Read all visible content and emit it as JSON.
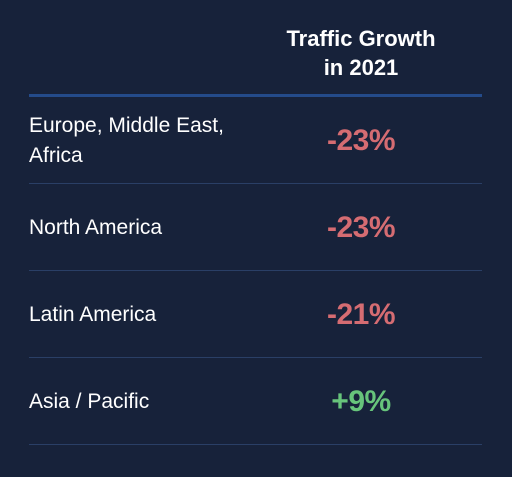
{
  "header": {
    "title": "Traffic Growth\nin 2021"
  },
  "colors": {
    "background": "#17223a",
    "negative": "#d56c72",
    "positive": "#67c47b",
    "header_divider": "#244b8a",
    "row_divider": "#2a3f66"
  },
  "chart_data": {
    "type": "table",
    "title": "",
    "columns": [
      "",
      "Traffic Growth in 2021"
    ],
    "rows": [
      {
        "label": "Europe, Middle East, Africa",
        "value": -23,
        "value_text": "-23%"
      },
      {
        "label": "North America",
        "value": -23,
        "value_text": "-23%"
      },
      {
        "label": "Latin America",
        "value": -21,
        "value_text": "-21%"
      },
      {
        "label": "Asia / Pacific",
        "value": 9,
        "value_text": "+9%"
      }
    ]
  }
}
